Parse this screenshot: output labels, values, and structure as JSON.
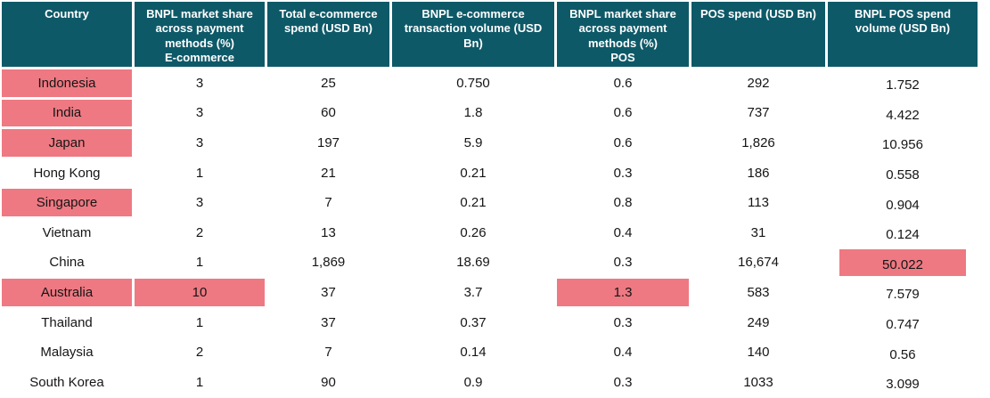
{
  "colors": {
    "header_bg": "#0e5968",
    "header_text": "#ffffff",
    "highlight_bg": "#ee7982",
    "body_text": "#151515"
  },
  "table": {
    "headers": [
      {
        "label": "Country",
        "sub": ""
      },
      {
        "label": "BNPL market share across payment methods  (%)",
        "sub": "E-commerce"
      },
      {
        "label": "Total e-commerce spend (USD Bn)",
        "sub": ""
      },
      {
        "label": "BNPL e-commerce transaction volume (USD Bn)",
        "sub": ""
      },
      {
        "label": "BNPL market share across payment methods  (%)",
        "sub": "POS"
      },
      {
        "label": "POS spend (USD Bn)",
        "sub": ""
      },
      {
        "label": "BNPL POS spend volume (USD Bn)",
        "sub": ""
      }
    ],
    "rows": [
      {
        "cells": [
          "Indonesia",
          "3",
          "25",
          "0.750",
          "0.6",
          "292",
          "1.752"
        ],
        "highlights": [
          0
        ]
      },
      {
        "cells": [
          "India",
          "3",
          "60",
          "1.8",
          "0.6",
          "737",
          "4.422"
        ],
        "highlights": [
          0
        ]
      },
      {
        "cells": [
          "Japan",
          "3",
          "197",
          "5.9",
          "0.6",
          "1,826",
          "10.956"
        ],
        "highlights": [
          0
        ]
      },
      {
        "cells": [
          "Hong Kong",
          "1",
          "21",
          "0.21",
          "0.3",
          "186",
          "0.558"
        ],
        "highlights": []
      },
      {
        "cells": [
          "Singapore",
          "3",
          "7",
          "0.21",
          "0.8",
          "113",
          "0.904"
        ],
        "highlights": [
          0
        ]
      },
      {
        "cells": [
          "Vietnam",
          "2",
          "13",
          "0.26",
          "0.4",
          "31",
          "0.124"
        ],
        "highlights": []
      },
      {
        "cells": [
          "China",
          "1",
          "1,869",
          "18.69",
          "0.3",
          "16,674",
          "50.022"
        ],
        "highlights": [
          6
        ]
      },
      {
        "cells": [
          "Australia",
          "10",
          "37",
          "3.7",
          "1.3",
          "583",
          "7.579"
        ],
        "highlights": [
          0,
          1,
          4
        ]
      },
      {
        "cells": [
          "Thailand",
          "1",
          "37",
          "0.37",
          "0.3",
          "249",
          "0.747"
        ],
        "highlights": []
      },
      {
        "cells": [
          "Malaysia",
          "2",
          "7",
          "0.14",
          "0.4",
          "140",
          "0.56"
        ],
        "highlights": []
      },
      {
        "cells": [
          "South Korea",
          "1",
          "90",
          "0.9",
          "0.3",
          "1033",
          "3.099"
        ],
        "highlights": []
      }
    ]
  },
  "chart_data": {
    "type": "table",
    "title": "",
    "columns": [
      "Country",
      "BNPL market share across payment methods (%) E-commerce",
      "Total e-commerce spend (USD Bn)",
      "BNPL e-commerce transaction volume (USD Bn)",
      "BNPL market share across payment methods (%) POS",
      "POS spend (USD Bn)",
      "BNPL POS spend volume (USD Bn)"
    ],
    "rows": [
      [
        "Indonesia",
        3,
        25,
        0.75,
        0.6,
        292,
        1.752
      ],
      [
        "India",
        3,
        60,
        1.8,
        0.6,
        737,
        4.422
      ],
      [
        "Japan",
        3,
        197,
        5.9,
        0.6,
        1826,
        10.956
      ],
      [
        "Hong Kong",
        1,
        21,
        0.21,
        0.3,
        186,
        0.558
      ],
      [
        "Singapore",
        3,
        7,
        0.21,
        0.8,
        113,
        0.904
      ],
      [
        "Vietnam",
        2,
        13,
        0.26,
        0.4,
        31,
        0.124
      ],
      [
        "China",
        1,
        1869,
        18.69,
        0.3,
        16674,
        50.022
      ],
      [
        "Australia",
        10,
        37,
        3.7,
        1.3,
        583,
        7.579
      ],
      [
        "Thailand",
        1,
        37,
        0.37,
        0.3,
        249,
        0.747
      ],
      [
        "Malaysia",
        2,
        7,
        0.14,
        0.4,
        140,
        0.56
      ],
      [
        "South Korea",
        1,
        90,
        0.9,
        0.3,
        1033,
        3.099
      ]
    ],
    "highlighted_cells": [
      {
        "row": "Indonesia",
        "column": "Country"
      },
      {
        "row": "India",
        "column": "Country"
      },
      {
        "row": "Japan",
        "column": "Country"
      },
      {
        "row": "Singapore",
        "column": "Country"
      },
      {
        "row": "China",
        "column": "BNPL POS spend volume (USD Bn)"
      },
      {
        "row": "Australia",
        "column": "Country"
      },
      {
        "row": "Australia",
        "column": "BNPL market share across payment methods (%) E-commerce"
      },
      {
        "row": "Australia",
        "column": "BNPL market share across payment methods (%) POS"
      }
    ],
    "highlight_color": "#ee7982",
    "legend_position": "none",
    "grid": false
  }
}
